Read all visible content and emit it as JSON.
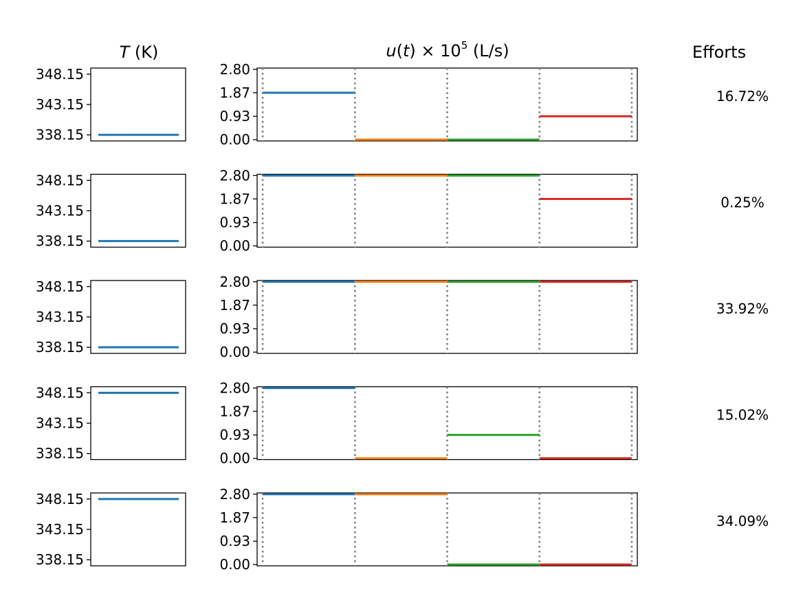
{
  "figure": {
    "columns": {
      "temperature": "T (K)",
      "flow": "u(t) × 10⁵ (L/s)",
      "efforts": "Efforts"
    }
  },
  "chart_data": {
    "type": "line",
    "temperature_axis": {
      "ticks": [
        348.15,
        343.15,
        338.15
      ],
      "tick_labels": [
        "348.15",
        "343.15",
        "338.15"
      ],
      "ylim": [
        337.15,
        349.15
      ]
    },
    "flow_axis": {
      "ticks": [
        2.8,
        1.87,
        0.93,
        0.0
      ],
      "tick_labels": [
        "2.80",
        "1.87",
        "0.93",
        "0.00"
      ],
      "ylim": [
        -0.05,
        2.85
      ],
      "xlim": [
        -0.06,
        4.06
      ],
      "interval_boundaries": [
        0,
        1,
        2,
        3,
        4
      ]
    },
    "segment_colors": [
      "#1f77b4",
      "#ff7f0e",
      "#2ca02c",
      "#d62728"
    ],
    "guide_color": "#808080",
    "rows": [
      {
        "temperature": 338.15,
        "u": [
          1.87,
          0.0,
          0.0,
          0.93
        ],
        "effort": "16.72%"
      },
      {
        "temperature": 338.15,
        "u": [
          2.8,
          2.8,
          2.8,
          1.87
        ],
        "effort": "0.25%"
      },
      {
        "temperature": 338.15,
        "u": [
          2.8,
          2.8,
          2.8,
          2.8
        ],
        "effort": "33.92%"
      },
      {
        "temperature": 348.15,
        "u": [
          2.8,
          0.0,
          0.93,
          0.0
        ],
        "effort": "15.02%"
      },
      {
        "temperature": 348.15,
        "u": [
          2.8,
          2.8,
          0.0,
          0.0
        ],
        "effort": "34.09%"
      }
    ]
  }
}
